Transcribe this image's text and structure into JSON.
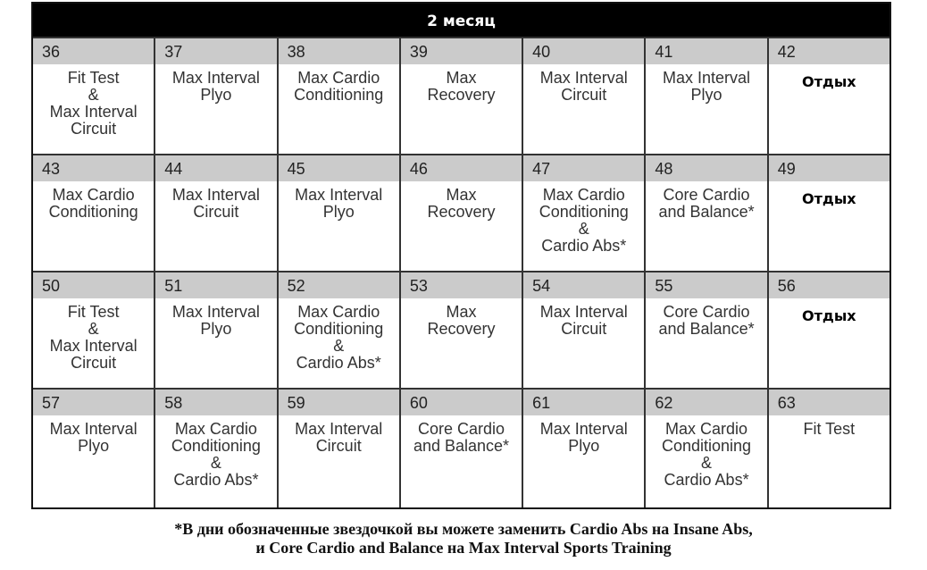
{
  "title": "2 месяц",
  "rows": [
    [
      {
        "day": "36",
        "workout": "Fit Test\n&\nMax Interval\nCircuit"
      },
      {
        "day": "37",
        "workout": "Max Interval\nPlyo"
      },
      {
        "day": "38",
        "workout": "Max Cardio\nConditioning"
      },
      {
        "day": "39",
        "workout": "Max\nRecovery"
      },
      {
        "day": "40",
        "workout": "Max Interval\nCircuit"
      },
      {
        "day": "41",
        "workout": "Max Interval\nPlyo"
      },
      {
        "day": "42",
        "workout": "Отдых",
        "rest": true
      }
    ],
    [
      {
        "day": "43",
        "workout": "Max Cardio\nConditioning"
      },
      {
        "day": "44",
        "workout": "Max Interval\nCircuit"
      },
      {
        "day": "45",
        "workout": "Max Interval\nPlyo"
      },
      {
        "day": "46",
        "workout": "Max\nRecovery"
      },
      {
        "day": "47",
        "workout": "Max Cardio\nConditioning\n&\nCardio Abs*"
      },
      {
        "day": "48",
        "workout": "Core Cardio\nand Balance*"
      },
      {
        "day": "49",
        "workout": "Отдых",
        "rest": true
      }
    ],
    [
      {
        "day": "50",
        "workout": "Fit Test\n&\nMax Interval\nCircuit"
      },
      {
        "day": "51",
        "workout": "Max Interval\nPlyo"
      },
      {
        "day": "52",
        "workout": "Max Cardio\nConditioning\n&\nCardio Abs*"
      },
      {
        "day": "53",
        "workout": "Max\nRecovery"
      },
      {
        "day": "54",
        "workout": "Max Interval\nCircuit"
      },
      {
        "day": "55",
        "workout": "Core Cardio\nand Balance*"
      },
      {
        "day": "56",
        "workout": "Отдых",
        "rest": true
      }
    ],
    [
      {
        "day": "57",
        "workout": "Max Interval\nPlyo"
      },
      {
        "day": "58",
        "workout": "Max Cardio\nConditioning\n&\nCardio Abs*"
      },
      {
        "day": "59",
        "workout": "Max Interval\nCircuit"
      },
      {
        "day": "60",
        "workout": "Core Cardio\nand Balance*"
      },
      {
        "day": "61",
        "workout": "Max Interval\nPlyo"
      },
      {
        "day": "62",
        "workout": "Max Cardio\nConditioning\n&\nCardio Abs*"
      },
      {
        "day": "63",
        "workout": "Fit Test"
      }
    ]
  ],
  "footnote": {
    "line1": "*В дни обозначенные звездочкой вы можете заменить Cardio Abs на Insane Abs,",
    "line2": "и Core Cardio and Balance на Max Interval Sports Training"
  }
}
